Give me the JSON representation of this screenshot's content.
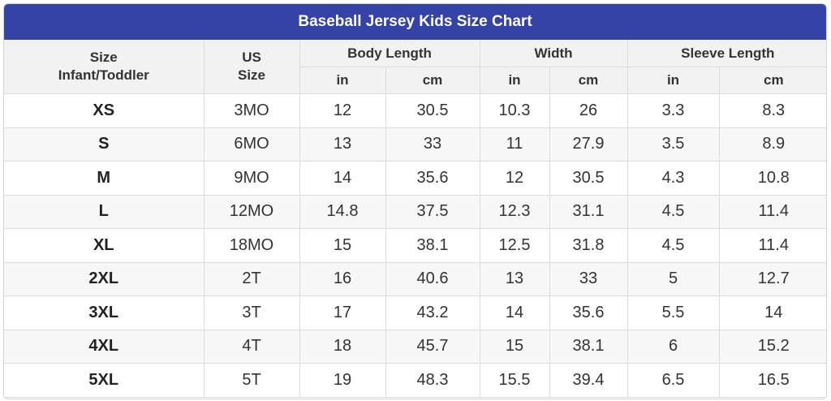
{
  "title": "Baseball Jersey Kids Size Chart",
  "headers": {
    "size_line1": "Size",
    "size_line2": "Infant/Toddler",
    "us_line1": "US",
    "us_line2": "Size",
    "groups": [
      "Body Length",
      "Width",
      "Sleeve Length"
    ],
    "units": [
      "in",
      "cm",
      "in",
      "cm",
      "in",
      "cm"
    ]
  },
  "rows": [
    [
      "XS",
      "3MO",
      "12",
      "30.5",
      "10.3",
      "26",
      "3.3",
      "8.3"
    ],
    [
      "S",
      "6MO",
      "13",
      "33",
      "11",
      "27.9",
      "3.5",
      "8.9"
    ],
    [
      "M",
      "9MO",
      "14",
      "35.6",
      "12",
      "30.5",
      "4.3",
      "10.8"
    ],
    [
      "L",
      "12MO",
      "14.8",
      "37.5",
      "12.3",
      "31.1",
      "4.5",
      "11.4"
    ],
    [
      "XL",
      "18MO",
      "15",
      "38.1",
      "12.5",
      "31.8",
      "4.5",
      "11.4"
    ],
    [
      "2XL",
      "2T",
      "16",
      "40.6",
      "13",
      "33",
      "5",
      "12.7"
    ],
    [
      "3XL",
      "3T",
      "17",
      "43.2",
      "14",
      "35.6",
      "5.5",
      "14"
    ],
    [
      "4XL",
      "4T",
      "18",
      "45.7",
      "15",
      "38.1",
      "6",
      "15.2"
    ],
    [
      "5XL",
      "5T",
      "19",
      "48.3",
      "15.5",
      "39.4",
      "6.5",
      "16.5"
    ]
  ],
  "colors": {
    "title_bg": "#3542a6",
    "header_bg": "#f2f2f2",
    "stripe_bg": "#f7f7f7",
    "border": "#dcdcdc"
  }
}
